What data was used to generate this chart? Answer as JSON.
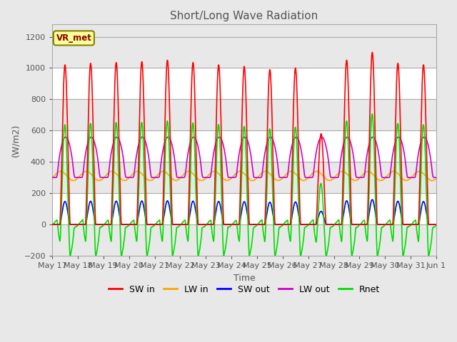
{
  "title": "Short/Long Wave Radiation",
  "xlabel": "Time",
  "ylabel": "(W/m2)",
  "ylim": [
    -200,
    1280
  ],
  "yticks": [
    -200,
    0,
    200,
    400,
    600,
    800,
    1000,
    1200
  ],
  "annotation_text": "VR_met",
  "legend_entries": [
    "SW in",
    "LW in",
    "SW out",
    "LW out",
    "Rnet"
  ],
  "line_colors": [
    "#ff0000",
    "#ffa500",
    "#0000ff",
    "#cc00cc",
    "#00dd00"
  ],
  "x_tick_labels": [
    "May 17",
    "May 18",
    "May 19",
    "May 20",
    "May 21",
    "May 22",
    "May 23",
    "May 24",
    "May 25",
    "May 26",
    "May 27",
    "May 28",
    "May 29",
    "May 30",
    "May 31",
    "Jun 1"
  ],
  "band_colors": [
    "#e8e8e8",
    "#ffffff"
  ]
}
